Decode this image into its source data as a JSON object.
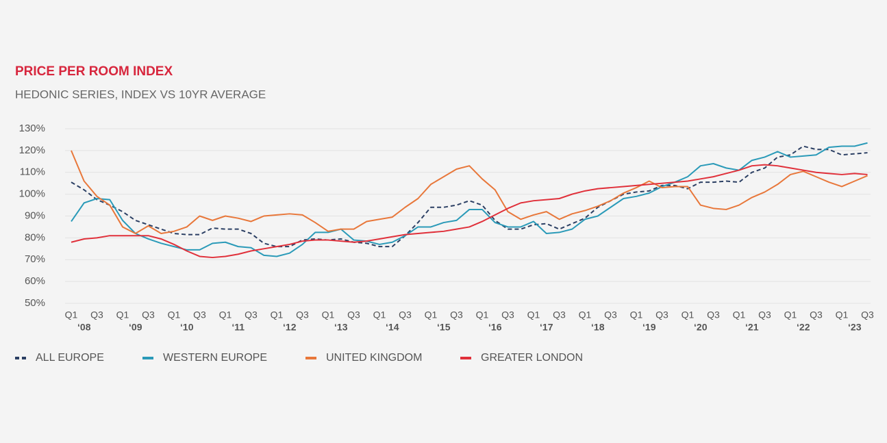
{
  "chart_data": {
    "type": "line",
    "title": "PRICE PER ROOM INDEX",
    "subtitle": "HEDONIC SERIES, INDEX VS 10YR AVERAGE",
    "categories": [
      "Q1",
      null,
      "Q3",
      null,
      "Q1",
      null,
      "Q3",
      null,
      "Q1",
      null,
      "Q3",
      null,
      "Q1",
      null,
      "Q3",
      null,
      "Q1",
      null,
      "Q3",
      null,
      "Q1",
      null,
      "Q3",
      null,
      "Q1",
      null,
      "Q3",
      null,
      "Q1",
      null,
      "Q3",
      null,
      "Q1",
      null,
      "Q3",
      null,
      "Q1",
      null,
      "Q3",
      null,
      "Q1",
      null,
      "Q3",
      null,
      "Q1",
      null,
      "Q3",
      null,
      "Q1",
      null,
      "Q3",
      null,
      "Q1",
      null,
      "Q3",
      null,
      "Q1",
      null,
      "Q3",
      null,
      "Q1",
      null,
      "Q3"
    ],
    "year_labels": [
      "‘08",
      "‘09",
      "‘10",
      "‘11",
      "‘12",
      "‘13",
      "‘14",
      "‘15",
      "‘16",
      "‘17",
      "‘18",
      "‘19",
      "‘20",
      "‘21",
      "‘22",
      "‘23"
    ],
    "ylim": [
      50,
      130
    ],
    "yticks": [
      {
        "value": 50,
        "label": "50%"
      },
      {
        "value": 60,
        "label": "60%"
      },
      {
        "value": 70,
        "label": "70%"
      },
      {
        "value": 80,
        "label": "80%"
      },
      {
        "value": 90,
        "label": "90%"
      },
      {
        "value": 100,
        "label": "100%"
      },
      {
        "value": 110,
        "label": "110%"
      },
      {
        "value": 120,
        "label": "120%"
      },
      {
        "value": 130,
        "label": "130%"
      }
    ],
    "grid": true,
    "series": [
      {
        "name": "ALL EUROPE",
        "color": "#2b3f63",
        "dash": true,
        "values": [
          105.5,
          102,
          97.5,
          95,
          92,
          88,
          86,
          84,
          82,
          81.5,
          81.5,
          84.5,
          84,
          84,
          82,
          77.5,
          76,
          76,
          79,
          79.5,
          79,
          79.5,
          78,
          77.5,
          76,
          76,
          81,
          87,
          94,
          94,
          95,
          97,
          95,
          88,
          84,
          84,
          86,
          86.5,
          84,
          86.5,
          89,
          94,
          97,
          100,
          101,
          101.5,
          104,
          104,
          102.5,
          105.5,
          105.5,
          106,
          105.5,
          110,
          112,
          117,
          118,
          122,
          120.5,
          120.5,
          118,
          118.5,
          119
        ]
      },
      {
        "name": "WESTERN EUROPE",
        "color": "#2a9ab8",
        "values": [
          87.5,
          96,
          98,
          97.5,
          88,
          82,
          79.5,
          77.5,
          76,
          74.5,
          74.5,
          77.5,
          78,
          76,
          75.5,
          72,
          71.5,
          73,
          77,
          82.5,
          82.5,
          84,
          79,
          78.5,
          77,
          78,
          81,
          85,
          85,
          87,
          88,
          93,
          93,
          87,
          85,
          85,
          87.5,
          82,
          82.5,
          84,
          88.5,
          90,
          94,
          98,
          99,
          100.5,
          103.5,
          105.5,
          108,
          113,
          114,
          112,
          111,
          115.5,
          117,
          119.5,
          117,
          117.5,
          118,
          121.5,
          122,
          122,
          123.5
        ]
      },
      {
        "name": "UNITED KINGDOM",
        "color": "#e8773a",
        "values": [
          120,
          106,
          99,
          95,
          85,
          82,
          85.5,
          82,
          83,
          85,
          90,
          88,
          90,
          89,
          87.5,
          90,
          90.5,
          91,
          90.5,
          87,
          83,
          84,
          84,
          87.5,
          88.5,
          89.5,
          94,
          98,
          104.5,
          108,
          111.5,
          113,
          107,
          102,
          92,
          88.5,
          90.5,
          92,
          88.5,
          91,
          92.5,
          94.5,
          97,
          100.5,
          103,
          106,
          103,
          103.5,
          103.5,
          95,
          93.5,
          93,
          95,
          98.5,
          101,
          104.5,
          109,
          110.5,
          108,
          105.5,
          103.5,
          106,
          108.5
        ]
      },
      {
        "name": "GREATER LONDON",
        "color": "#e0303a",
        "values": [
          78,
          79.5,
          80,
          81,
          81,
          81,
          81,
          79.5,
          77,
          74,
          71.5,
          71,
          71.5,
          72.5,
          74,
          75,
          76,
          77,
          78.5,
          79,
          79,
          78.5,
          78,
          78.5,
          79.5,
          80.5,
          81.5,
          82,
          82.5,
          83,
          84,
          85,
          87.5,
          90.5,
          93.5,
          96,
          97,
          97.5,
          98,
          100,
          101.5,
          102.5,
          103,
          103.5,
          104,
          104.5,
          105,
          105.5,
          106,
          107,
          108,
          109.5,
          111,
          113,
          113.5,
          113,
          112,
          111,
          110,
          109.5,
          109,
          109.5,
          109
        ]
      }
    ]
  }
}
